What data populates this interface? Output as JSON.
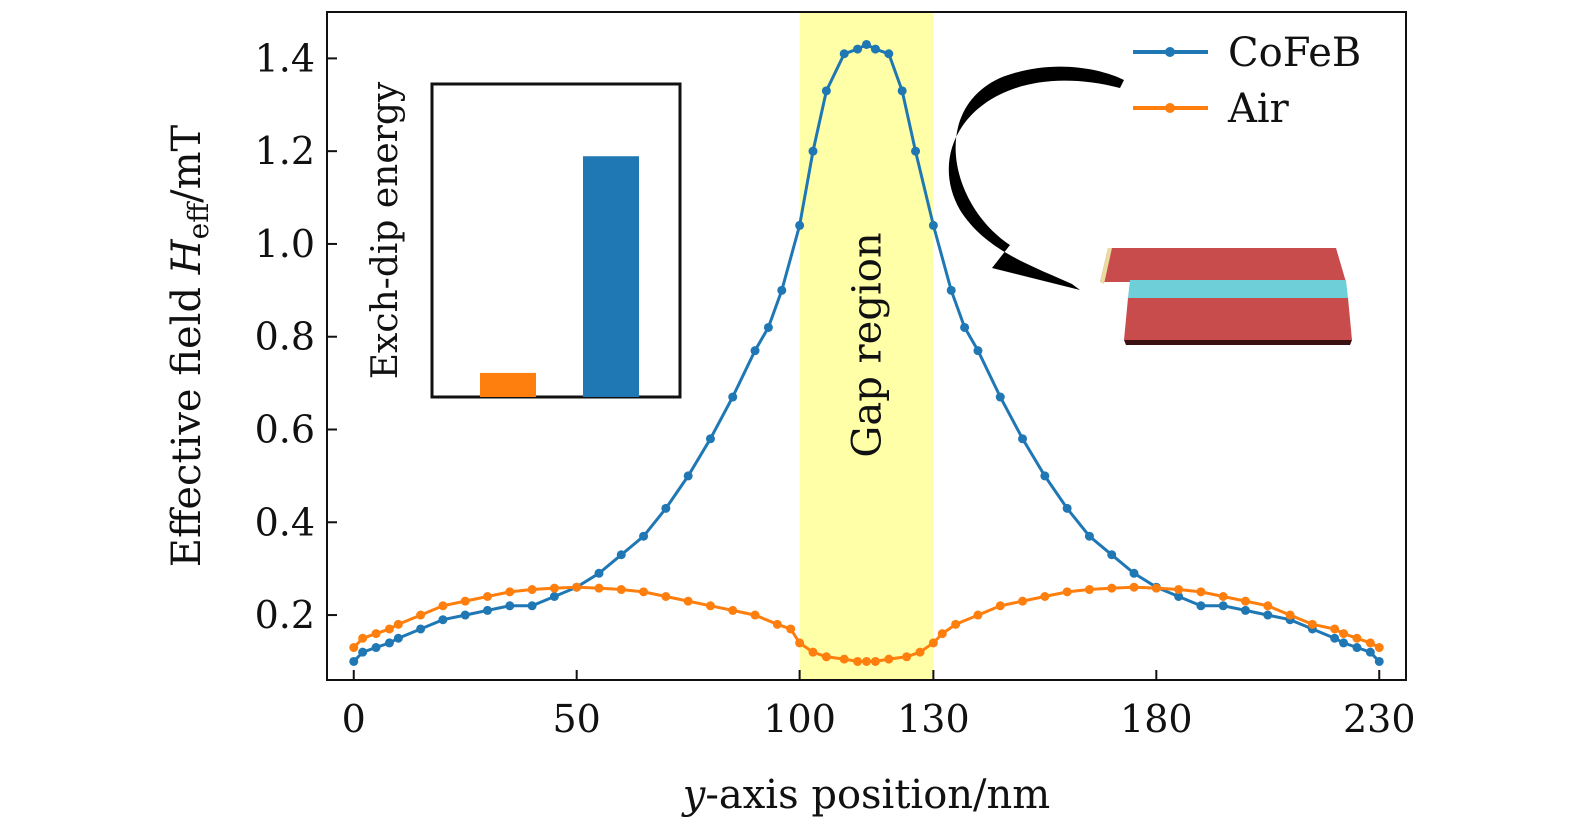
{
  "chart_data": {
    "type": "line",
    "xlabel": "y-axis position/nm",
    "ylabel": "Effective field H_eff/mT",
    "ylabel_prefix": "Effective field ",
    "ylabel_symbol": "H",
    "ylabel_subscript": "eff",
    "ylabel_suffix": "/mT",
    "xlabel_symbol": "y",
    "xlabel_suffix": "-axis position/nm",
    "xlim": [
      -6,
      236
    ],
    "ylim": [
      0.06,
      1.5
    ],
    "xticks": [
      0,
      50,
      100,
      130,
      180,
      230
    ],
    "xtick_labels": [
      "0",
      "50",
      "100",
      "130",
      "180",
      "230"
    ],
    "yticks": [
      0.2,
      0.4,
      0.6,
      0.8,
      1.0,
      1.2,
      1.4
    ],
    "ytick_labels": [
      "0.2",
      "0.4",
      "0.6",
      "0.8",
      "1.0",
      "1.2",
      "1.4"
    ],
    "grid": false,
    "legend_position": "top-right",
    "region": {
      "label": "Gap region",
      "x_start": 100,
      "x_end": 130,
      "color": "#ffff99"
    },
    "series": [
      {
        "name": "CoFeB",
        "color": "#1f77b4",
        "x": [
          0,
          2,
          5,
          8,
          10,
          15,
          20,
          25,
          30,
          35,
          40,
          45,
          50,
          55,
          60,
          65,
          70,
          75,
          80,
          85,
          90,
          93,
          96,
          100,
          103,
          106,
          110,
          113,
          115,
          117,
          120,
          123,
          126,
          130,
          134,
          137,
          140,
          145,
          150,
          155,
          160,
          165,
          170,
          175,
          180,
          185,
          190,
          195,
          200,
          205,
          210,
          215,
          220,
          222,
          225,
          228,
          230
        ],
        "values": [
          0.1,
          0.12,
          0.13,
          0.14,
          0.15,
          0.17,
          0.19,
          0.2,
          0.21,
          0.22,
          0.22,
          0.24,
          0.26,
          0.29,
          0.33,
          0.37,
          0.43,
          0.5,
          0.58,
          0.67,
          0.77,
          0.82,
          0.9,
          1.04,
          1.2,
          1.33,
          1.41,
          1.42,
          1.43,
          1.42,
          1.41,
          1.33,
          1.2,
          1.04,
          0.9,
          0.82,
          0.77,
          0.67,
          0.58,
          0.5,
          0.43,
          0.37,
          0.33,
          0.29,
          0.26,
          0.24,
          0.22,
          0.22,
          0.21,
          0.2,
          0.19,
          0.17,
          0.15,
          0.14,
          0.13,
          0.12,
          0.1
        ]
      },
      {
        "name": "Air",
        "color": "#ff7f0e",
        "x": [
          0,
          2,
          5,
          8,
          10,
          15,
          20,
          25,
          30,
          35,
          40,
          45,
          50,
          55,
          60,
          65,
          70,
          75,
          80,
          85,
          90,
          95,
          98,
          100,
          103,
          106,
          110,
          113,
          115,
          117,
          120,
          124,
          127,
          130,
          132,
          135,
          140,
          145,
          150,
          155,
          160,
          165,
          170,
          175,
          180,
          185,
          190,
          195,
          200,
          205,
          210,
          215,
          220,
          222,
          225,
          228,
          230
        ],
        "values": [
          0.13,
          0.15,
          0.16,
          0.17,
          0.18,
          0.2,
          0.22,
          0.23,
          0.24,
          0.25,
          0.255,
          0.258,
          0.26,
          0.258,
          0.255,
          0.25,
          0.24,
          0.23,
          0.22,
          0.21,
          0.2,
          0.18,
          0.17,
          0.14,
          0.12,
          0.11,
          0.105,
          0.1,
          0.1,
          0.1,
          0.105,
          0.11,
          0.12,
          0.14,
          0.16,
          0.18,
          0.2,
          0.22,
          0.23,
          0.24,
          0.25,
          0.255,
          0.258,
          0.26,
          0.258,
          0.255,
          0.25,
          0.24,
          0.23,
          0.22,
          0.2,
          0.18,
          0.17,
          0.16,
          0.15,
          0.14,
          0.13
        ]
      }
    ],
    "inset": {
      "type": "bar",
      "ylabel": "Exch-dip energy",
      "series": [
        {
          "name": "Air",
          "value": 0.1,
          "color": "#ff7f0e"
        },
        {
          "name": "CoFeB",
          "value": 1.0,
          "color": "#1f77b4"
        }
      ],
      "ylim": [
        0,
        1.3
      ]
    },
    "illustration": {
      "arrow_color": "#000000",
      "layer_top_color": "#c94c4c",
      "layer_middle_color": "#6fcfd8",
      "layer_bottom_color": "#c94c4c"
    }
  }
}
